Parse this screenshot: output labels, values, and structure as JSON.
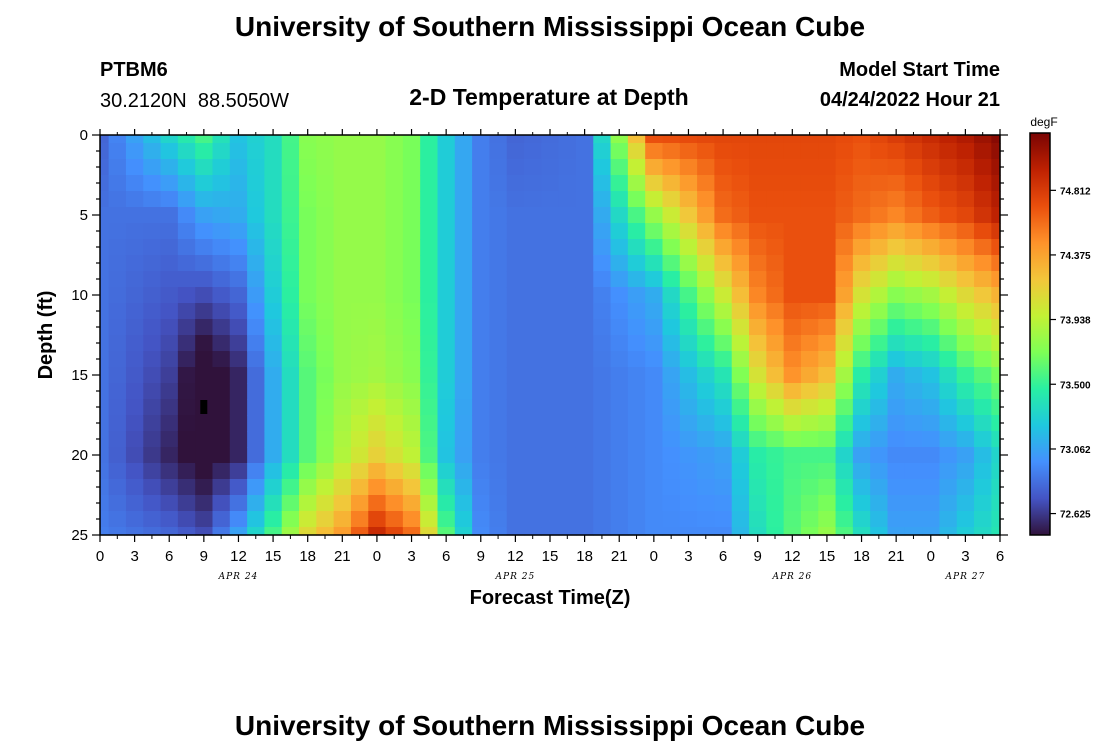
{
  "chart_data": {
    "type": "heatmap",
    "title": "University of Southern Mississippi Ocean Cube",
    "subtitle": "2-D Temperature at Depth",
    "station": "PTBM6",
    "location": "30.2120N  88.5050W",
    "model_start_label": "Model Start Time",
    "model_start_value": "04/24/2022 Hour 21",
    "xlabel": "Forecast Time(Z)",
    "ylabel": "Depth (ft)",
    "colorbar_label": "degF",
    "x_tick_labels": [
      "0",
      "3",
      "6",
      "9",
      "12",
      "15",
      "18",
      "21",
      "0",
      "3",
      "6",
      "9",
      "12",
      "15",
      "18",
      "21",
      "0",
      "3",
      "6",
      "9",
      "12",
      "15",
      "18",
      "21",
      "0",
      "3",
      "6"
    ],
    "date_labels": [
      {
        "text": "APR 24",
        "at_tick": 4
      },
      {
        "text": "APR 25",
        "at_tick": 12
      },
      {
        "text": "APR 26",
        "at_tick": 20
      },
      {
        "text": "APR 27",
        "at_tick": 25
      }
    ],
    "y_ticks": [
      0,
      5,
      10,
      15,
      20,
      25
    ],
    "ylim": [
      0,
      25
    ],
    "colorbar_ticks": [
      72.625,
      73.062,
      73.5,
      73.938,
      74.375,
      74.812
    ],
    "colorbar_tick_labels": [
      "72.625",
      "73.062",
      "73.500",
      "73.938",
      "74.375",
      "74.812"
    ],
    "color_range": [
      72.48,
      75.2
    ],
    "colormap": [
      "#30123b",
      "#4454c4",
      "#4490fe",
      "#1fc8de",
      "#29efa2",
      "#7eff55",
      "#c3f134",
      "#f3c63a",
      "#fe922a",
      "#ea4f0d",
      "#be2102",
      "#7a0403"
    ],
    "grid_shape": {
      "hours_every": 1.5,
      "depth_every_ft": 1
    },
    "control_points_time_hours": [
      0,
      6,
      9,
      12,
      15,
      18,
      21,
      24,
      27,
      30,
      33,
      36,
      42,
      48,
      54,
      57,
      60,
      63,
      66,
      69,
      72,
      75,
      78
    ],
    "control_points_depth_ft": [
      0,
      5,
      10,
      15,
      20,
      25
    ],
    "control_values_degF": [
      [
        72.8,
        72.85,
        72.85,
        72.85,
        72.85,
        72.9
      ],
      [
        73.3,
        72.85,
        72.75,
        72.65,
        72.55,
        72.8
      ],
      [
        73.55,
        73.05,
        72.7,
        72.35,
        72.4,
        72.7
      ],
      [
        73.2,
        73.1,
        72.8,
        72.55,
        72.55,
        73.05
      ],
      [
        73.35,
        73.35,
        73.25,
        73.1,
        73.1,
        73.55
      ],
      [
        73.75,
        73.7,
        73.7,
        73.6,
        73.6,
        74.1
      ],
      [
        73.8,
        73.8,
        73.8,
        73.8,
        73.9,
        74.4
      ],
      [
        73.8,
        73.8,
        73.8,
        73.85,
        74.15,
        74.9
      ],
      [
        73.7,
        73.7,
        73.7,
        73.75,
        73.95,
        74.6
      ],
      [
        73.25,
        73.25,
        73.25,
        73.25,
        73.2,
        73.6
      ],
      [
        72.9,
        72.9,
        72.9,
        72.9,
        72.9,
        72.95
      ],
      [
        72.8,
        72.85,
        72.85,
        72.85,
        72.85,
        72.85
      ],
      [
        72.85,
        72.85,
        72.85,
        72.85,
        72.85,
        72.85
      ],
      [
        74.7,
        73.8,
        73.1,
        72.95,
        72.95,
        72.95
      ],
      [
        74.75,
        74.6,
        74.0,
        73.4,
        73.05,
        72.95
      ],
      [
        74.75,
        74.7,
        74.5,
        74.05,
        73.45,
        73.35
      ],
      [
        74.75,
        74.7,
        74.7,
        74.45,
        73.55,
        73.6
      ],
      [
        74.75,
        74.7,
        74.7,
        74.25,
        73.55,
        73.8
      ],
      [
        74.7,
        74.6,
        74.05,
        73.45,
        73.05,
        73.35
      ],
      [
        74.8,
        74.5,
        73.75,
        73.1,
        72.95,
        73.05
      ],
      [
        74.9,
        74.65,
        73.85,
        73.2,
        72.95,
        73.05
      ],
      [
        75.0,
        74.75,
        74.1,
        73.5,
        73.05,
        73.25
      ],
      [
        75.15,
        74.95,
        74.3,
        73.7,
        73.3,
        73.4
      ]
    ],
    "min_marker": {
      "time_hours": 9,
      "depth_ft": 17
    }
  }
}
